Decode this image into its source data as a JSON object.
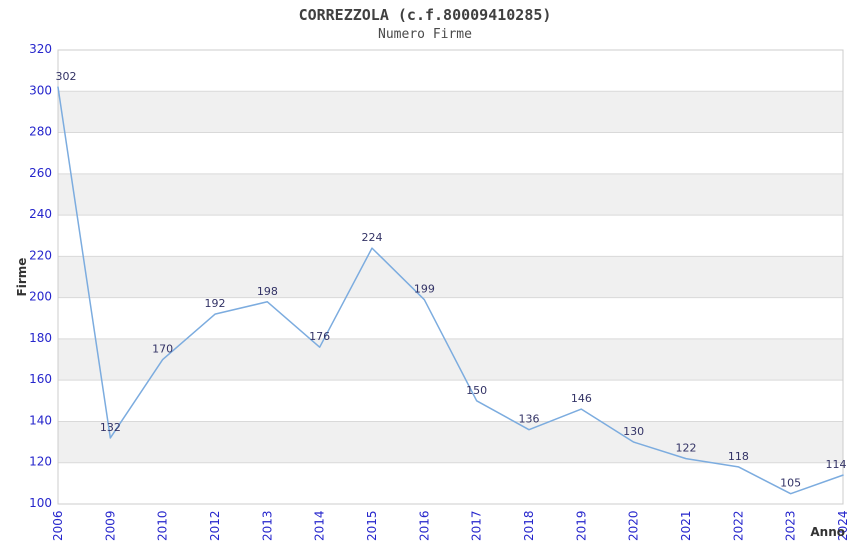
{
  "header": {
    "title": "CORREZZOLA (c.f.80009410285)",
    "subtitle": "Numero Firme"
  },
  "chart_data": {
    "type": "line",
    "title": "CORREZZOLA (c.f.80009410285)",
    "subtitle": "Numero Firme",
    "xlabel": "Anno",
    "ylabel": "Firme",
    "categories": [
      "2006",
      "2009",
      "2010",
      "2012",
      "2013",
      "2014",
      "2015",
      "2016",
      "2017",
      "2018",
      "2019",
      "2020",
      "2021",
      "2022",
      "2023",
      "2024"
    ],
    "values": [
      302,
      132,
      170,
      192,
      198,
      176,
      224,
      199,
      150,
      136,
      146,
      130,
      122,
      118,
      105,
      114
    ],
    "ylim": [
      100,
      320
    ],
    "ytick_step": 20,
    "grid": "horizontal-only",
    "legend": "none",
    "point_labels_visible": true,
    "colors": {
      "line": "#7cacdf",
      "tick_label": "#2626cc",
      "point_label": "#333366",
      "band": "#f0f0f0",
      "gridline": "#d9d9d9",
      "plot_border": "#cccccc",
      "axis_title": "#333333"
    }
  }
}
